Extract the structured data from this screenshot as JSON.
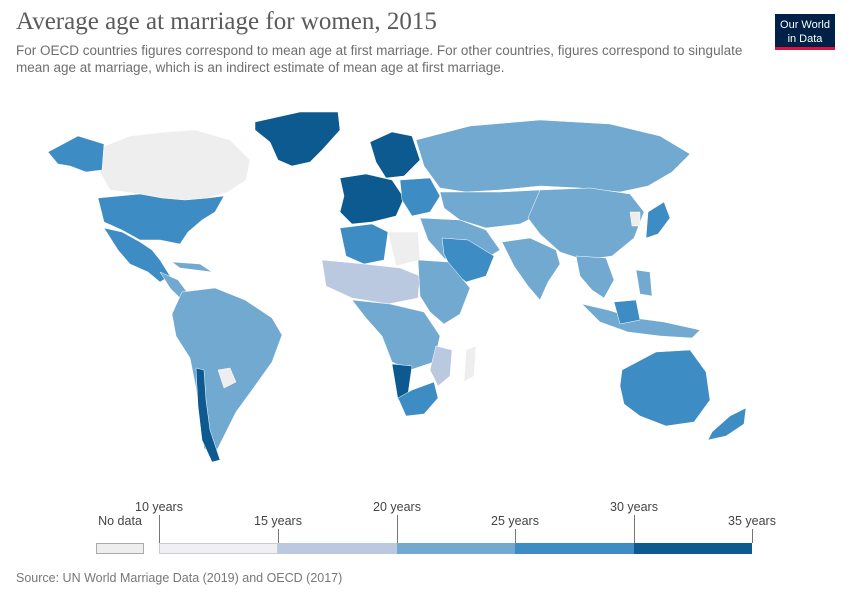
{
  "title": "Average age at marriage for women, 2015",
  "subtitle": "For OECD countries figures correspond to mean age at first marriage. For other countries, figures correspond to singulate mean age at marriage, which is an indirect estimate of mean age at first marriage.",
  "logo": {
    "line1": "Our World",
    "line2": "in Data"
  },
  "legend": {
    "no_data": "No data",
    "labels": [
      "10 years",
      "15 years",
      "20 years",
      "25 years",
      "30 years",
      "35 years"
    ],
    "colors": {
      "no_data": "#eeeeee",
      "b10_15": "#f0eff7",
      "b15_20": "#bac8e0",
      "b20_25": "#72a9d1",
      "b25_30": "#3d8cc4",
      "b30_35": "#0c5a8f"
    }
  },
  "source": "Source: UN World Marriage Data (2019) and OECD (2017)"
}
